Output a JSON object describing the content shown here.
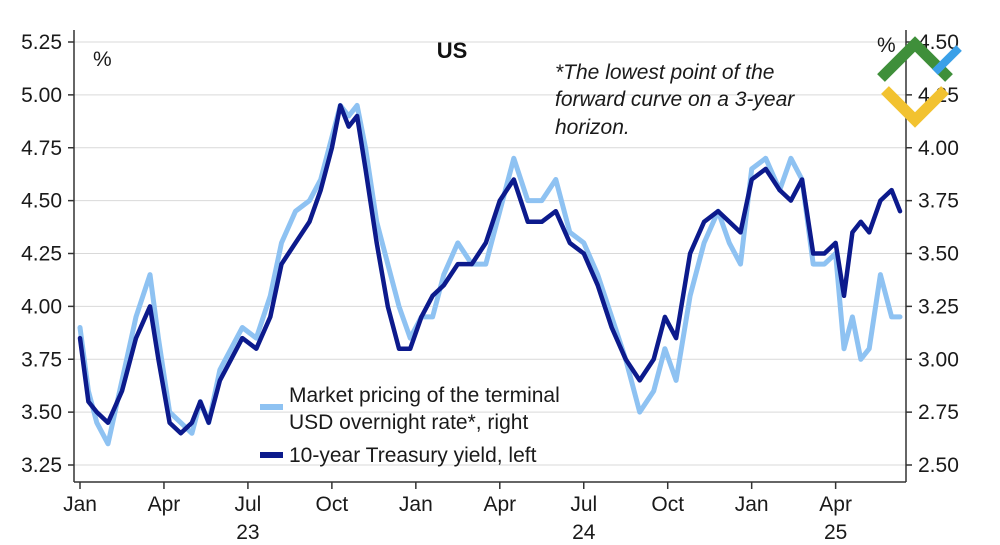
{
  "chart_data": {
    "type": "line",
    "title": "US",
    "note": [
      "*The lowest point of the",
      "forward curve on a 3-year",
      "horizon."
    ],
    "left_axis": {
      "unit": "%",
      "min": 3.25,
      "max": 5.25,
      "ticks": [
        "3.25",
        "3.50",
        "3.75",
        "4.00",
        "4.25",
        "4.50",
        "4.75",
        "5.00",
        "5.25"
      ]
    },
    "right_axis": {
      "unit": "%",
      "min": 2.5,
      "max": 4.5,
      "ticks": [
        "2.50",
        "2.75",
        "3.00",
        "3.25",
        "3.50",
        "3.75",
        "4.00",
        "4.25",
        "4.50"
      ]
    },
    "x_ticks": [
      {
        "label": "Jan",
        "year": "",
        "t": 0
      },
      {
        "label": "Apr",
        "year": "",
        "t": 3
      },
      {
        "label": "Jul",
        "year": "23",
        "t": 6
      },
      {
        "label": "Oct",
        "year": "",
        "t": 9
      },
      {
        "label": "Jan",
        "year": "",
        "t": 12
      },
      {
        "label": "Apr",
        "year": "",
        "t": 15
      },
      {
        "label": "Jul",
        "year": "24",
        "t": 18
      },
      {
        "label": "Oct",
        "year": "",
        "t": 21
      },
      {
        "label": "Jan",
        "year": "",
        "t": 24
      },
      {
        "label": "Apr",
        "year": "25",
        "t": 27
      }
    ],
    "x_range": [
      0,
      29.3
    ],
    "legend": [
      {
        "label": [
          "Market pricing of the terminal",
          "USD overnight rate*, right"
        ],
        "color": "#8ec2f2"
      },
      {
        "label": [
          "10-year Treasury yield, left"
        ],
        "color": "#0c1a8c"
      }
    ],
    "series": [
      {
        "name": "Market pricing of the terminal USD overnight rate*, right",
        "axis": "right",
        "color": "#8ec2f2",
        "x": [
          0,
          0.3,
          0.6,
          1.0,
          1.5,
          2.0,
          2.5,
          2.8,
          3.2,
          3.6,
          4.0,
          4.3,
          4.6,
          5.0,
          5.4,
          5.8,
          6.3,
          6.8,
          7.2,
          7.7,
          8.2,
          8.6,
          9.0,
          9.3,
          9.6,
          9.9,
          10.2,
          10.6,
          11.0,
          11.4,
          11.8,
          12.2,
          12.6,
          13.0,
          13.5,
          14.0,
          14.5,
          15.0,
          15.5,
          16.0,
          16.5,
          17.0,
          17.5,
          18.0,
          18.5,
          19.0,
          19.5,
          20.0,
          20.5,
          20.9,
          21.3,
          21.8,
          22.3,
          22.8,
          23.2,
          23.6,
          24.0,
          24.5,
          25.0,
          25.4,
          25.8,
          26.2,
          26.6,
          27.0,
          27.3,
          27.6,
          27.9,
          28.2,
          28.6,
          29.0,
          29.3
        ],
        "y": [
          3.15,
          2.85,
          2.7,
          2.6,
          2.9,
          3.2,
          3.4,
          3.1,
          2.75,
          2.7,
          2.65,
          2.8,
          2.7,
          2.95,
          3.05,
          3.15,
          3.1,
          3.3,
          3.55,
          3.7,
          3.75,
          3.85,
          4.05,
          4.2,
          4.15,
          4.2,
          4.0,
          3.65,
          3.45,
          3.25,
          3.1,
          3.2,
          3.2,
          3.4,
          3.55,
          3.45,
          3.45,
          3.7,
          3.95,
          3.75,
          3.75,
          3.85,
          3.6,
          3.55,
          3.4,
          3.2,
          3.0,
          2.75,
          2.85,
          3.05,
          2.9,
          3.3,
          3.55,
          3.7,
          3.55,
          3.45,
          3.9,
          3.95,
          3.8,
          3.95,
          3.85,
          3.45,
          3.45,
          3.5,
          3.05,
          3.2,
          3.0,
          3.05,
          3.4,
          3.2,
          3.2
        ]
      },
      {
        "name": "10-year Treasury yield, left",
        "axis": "left",
        "color": "#0c1a8c",
        "x": [
          0,
          0.3,
          0.6,
          1.0,
          1.5,
          2.0,
          2.5,
          2.8,
          3.2,
          3.6,
          4.0,
          4.3,
          4.6,
          5.0,
          5.4,
          5.8,
          6.3,
          6.8,
          7.2,
          7.7,
          8.2,
          8.6,
          9.0,
          9.3,
          9.6,
          9.9,
          10.2,
          10.6,
          11.0,
          11.4,
          11.8,
          12.2,
          12.6,
          13.0,
          13.5,
          14.0,
          14.5,
          15.0,
          15.5,
          16.0,
          16.5,
          17.0,
          17.5,
          18.0,
          18.5,
          19.0,
          19.5,
          20.0,
          20.5,
          20.9,
          21.3,
          21.8,
          22.3,
          22.8,
          23.2,
          23.6,
          24.0,
          24.5,
          25.0,
          25.4,
          25.8,
          26.2,
          26.6,
          27.0,
          27.3,
          27.6,
          27.9,
          28.2,
          28.6,
          29.0,
          29.3
        ],
        "y": [
          3.85,
          3.55,
          3.5,
          3.45,
          3.6,
          3.85,
          4.0,
          3.75,
          3.45,
          3.4,
          3.45,
          3.55,
          3.45,
          3.65,
          3.75,
          3.85,
          3.8,
          3.95,
          4.2,
          4.3,
          4.4,
          4.55,
          4.75,
          4.95,
          4.85,
          4.9,
          4.65,
          4.3,
          4.0,
          3.8,
          3.8,
          3.95,
          4.05,
          4.1,
          4.2,
          4.2,
          4.3,
          4.5,
          4.6,
          4.4,
          4.4,
          4.45,
          4.3,
          4.25,
          4.1,
          3.9,
          3.75,
          3.65,
          3.75,
          3.95,
          3.85,
          4.25,
          4.4,
          4.45,
          4.4,
          4.35,
          4.6,
          4.65,
          4.55,
          4.5,
          4.6,
          4.25,
          4.25,
          4.3,
          4.05,
          4.35,
          4.4,
          4.35,
          4.5,
          4.55,
          4.45
        ]
      }
    ]
  }
}
